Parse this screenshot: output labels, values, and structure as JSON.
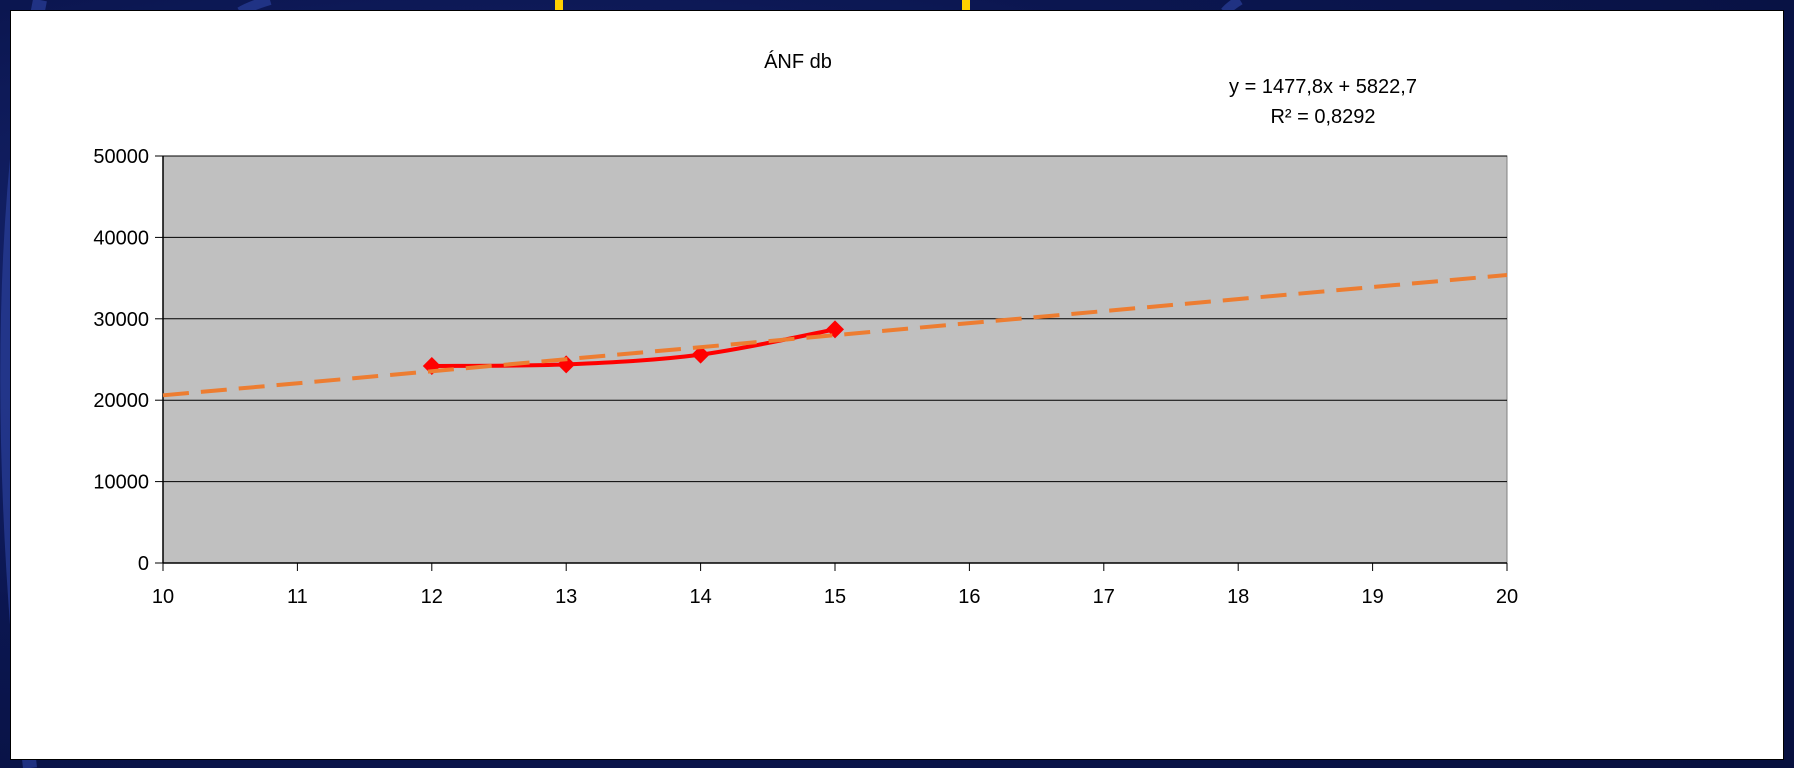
{
  "chart_data": {
    "type": "line",
    "title": "ÁNF db",
    "xlabel": "",
    "ylabel": "",
    "xlim": [
      10,
      20
    ],
    "ylim": [
      0,
      50000
    ],
    "x_ticks": [
      "10",
      "11",
      "12",
      "13",
      "14",
      "15",
      "16",
      "17",
      "18",
      "19",
      "20"
    ],
    "y_ticks": [
      "0",
      "10000",
      "20000",
      "30000",
      "40000",
      "50000"
    ],
    "grid": "horizontal",
    "plot_background": "#c0c0c0",
    "series": [
      {
        "x": [
          12,
          13,
          14,
          15
        ],
        "values": [
          24200,
          24400,
          25600,
          28700
        ],
        "color": "#ff0000",
        "marker": "diamond",
        "smooth": true
      }
    ],
    "trendline": {
      "slope": 1477.8,
      "intercept": 5822.7,
      "color": "#ed7d31",
      "style": "dashed",
      "x_range": [
        10,
        20
      ]
    },
    "annotations": {
      "equation": "y = 1477,8x + 5822,7",
      "r_squared": "R² = 0,8292"
    }
  }
}
